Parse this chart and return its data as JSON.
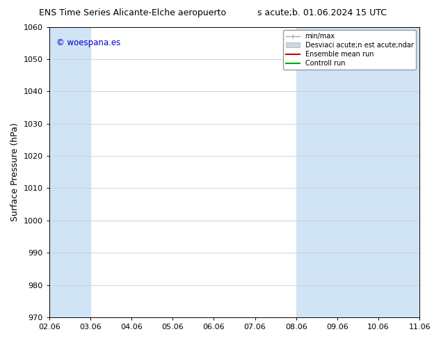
{
  "title_left": "ENS Time Series Alicante-Elche aeropuerto",
  "title_right": "s acute;b. 01.06.2024 15 UTC",
  "ylabel": "Surface Pressure (hPa)",
  "ylim": [
    970,
    1060
  ],
  "yticks": [
    970,
    980,
    990,
    1000,
    1010,
    1020,
    1030,
    1040,
    1050,
    1060
  ],
  "x_labels": [
    "02.06",
    "03.06",
    "04.06",
    "05.06",
    "06.06",
    "07.06",
    "08.06",
    "09.06",
    "10.06",
    "11.06"
  ],
  "x_values": [
    0,
    1,
    2,
    3,
    4,
    5,
    6,
    7,
    8,
    9
  ],
  "xlim": [
    0,
    9
  ],
  "shaded_bands": [
    {
      "x_start": 0,
      "x_end": 1,
      "color": "#d0e4f5"
    },
    {
      "x_start": 6,
      "x_end": 8,
      "color": "#d0e4f5"
    },
    {
      "x_start": 9,
      "x_end": 9,
      "color": "#d0e4f5"
    }
  ],
  "watermark_text": "© woespana.es",
  "watermark_color": "#0000cc",
  "background_color": "#ffffff",
  "legend_minmax_color": "#aaaaaa",
  "legend_std_color": "#c8d8e8",
  "legend_ens_color": "#cc0000",
  "legend_ctrl_color": "#00aa00",
  "grid_color": "#cccccc",
  "axis_color": "#000000",
  "title_fontsize": 9,
  "font_size": 8,
  "ylabel_fontsize": 9
}
